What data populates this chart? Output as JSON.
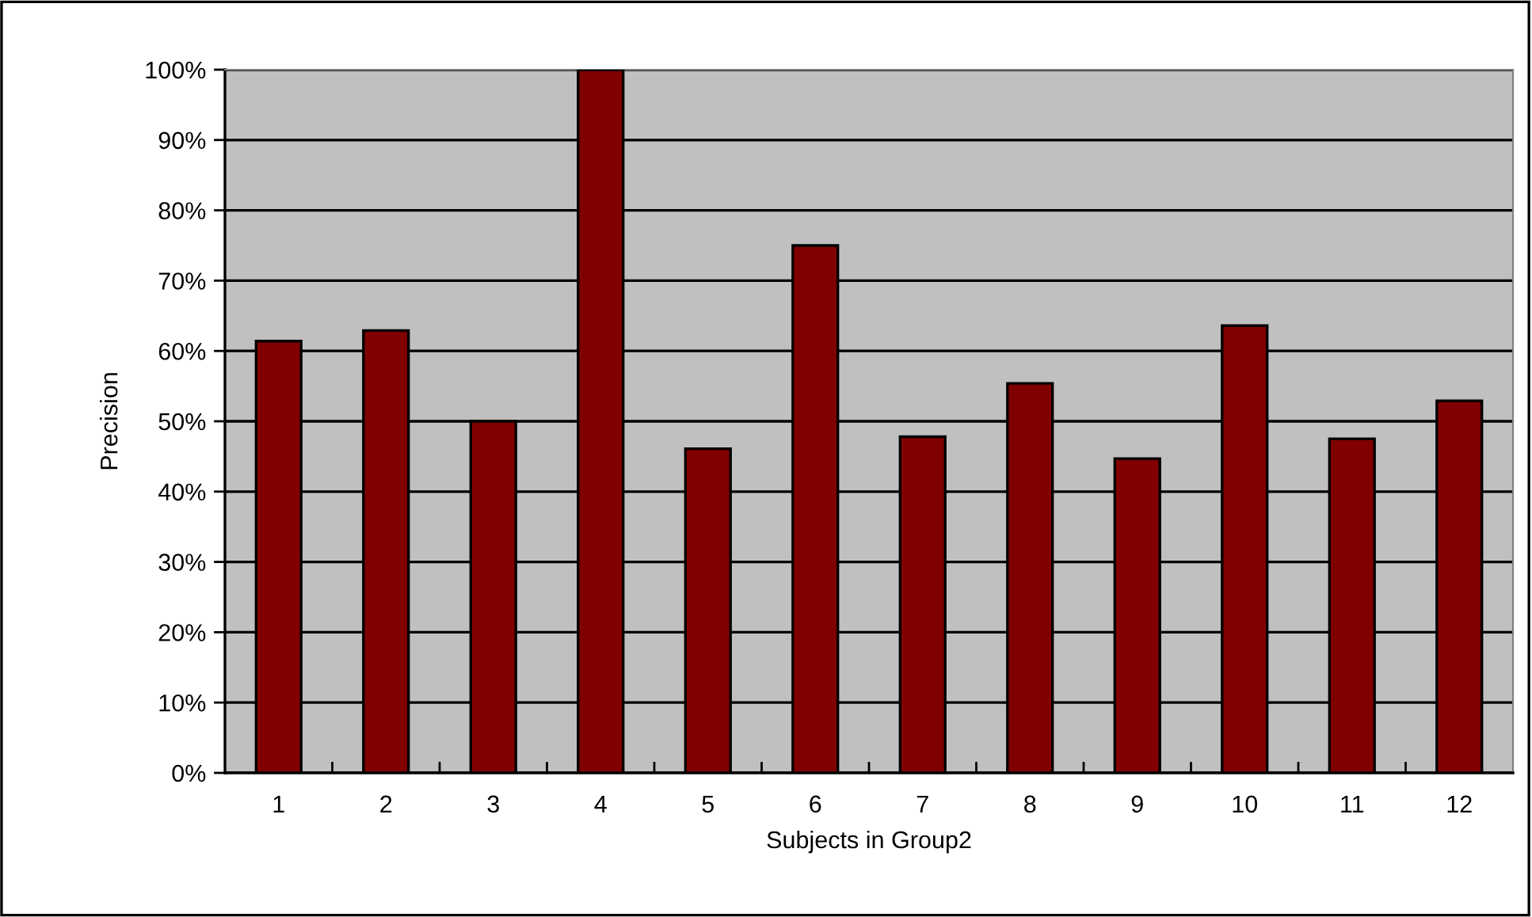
{
  "chart_data": {
    "type": "bar",
    "xlabel": "Subjects in Group2",
    "ylabel": "Precision",
    "categories": [
      "1",
      "2",
      "3",
      "4",
      "5",
      "6",
      "7",
      "8",
      "9",
      "10",
      "11",
      "12"
    ],
    "values": [
      61.4,
      62.9,
      50,
      100,
      46.1,
      75,
      47.8,
      55.4,
      44.7,
      63.6,
      47.5,
      52.9
    ],
    "color": "#800000",
    "ylim": [
      0,
      100
    ],
    "yticks": [
      {
        "value": 0,
        "label": "0%"
      },
      {
        "value": 10,
        "label": "10%"
      },
      {
        "value": 20,
        "label": "20%"
      },
      {
        "value": 30,
        "label": "30%"
      },
      {
        "value": 40,
        "label": "40%"
      },
      {
        "value": 50,
        "label": "50%"
      },
      {
        "value": 60,
        "label": "60%"
      },
      {
        "value": 70,
        "label": "70%"
      },
      {
        "value": 80,
        "label": "80%"
      },
      {
        "value": 90,
        "label": "90%"
      },
      {
        "value": 100,
        "label": "100%"
      }
    ],
    "grid": "y",
    "legend": false
  }
}
